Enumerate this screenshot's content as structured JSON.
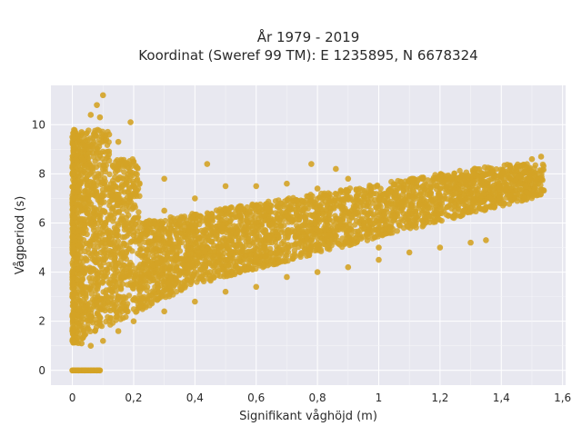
{
  "chart_data": {
    "type": "scatter",
    "title": "År 1979 - 2019",
    "subtitle": "Koordinat (Sweref 99 TM): E 1235895, N 6678324",
    "xlabel": "Signifikant våghöjd (m)",
    "ylabel": "Vågperiod (s)",
    "xlim": [
      -0.07,
      1.61
    ],
    "ylim": [
      -0.6,
      11.6
    ],
    "xticks": [
      0,
      0.2,
      0.4,
      0.6,
      0.8,
      1,
      1.2,
      1.4,
      1.6
    ],
    "xtick_labels": [
      "0",
      "0,2",
      "0,4",
      "0,6",
      "0,8",
      "1",
      "1,2",
      "1,4",
      "1,6"
    ],
    "yticks": [
      0,
      2,
      4,
      6,
      8,
      10
    ],
    "ytick_labels": [
      "0",
      "2",
      "4",
      "6",
      "8",
      "10"
    ],
    "grid": true,
    "legend": "none",
    "marker_color": "#D4A326",
    "background_color": "#E8E8F0",
    "points": [
      {
        "x": 0.0,
        "y": 0.0
      },
      {
        "x": 0.02,
        "y": 0.0
      },
      {
        "x": 0.04,
        "y": 0.0
      },
      {
        "x": 0.06,
        "y": 0.0
      },
      {
        "x": 0.08,
        "y": 0.0
      },
      {
        "x": 0.09,
        "y": 0.0
      },
      {
        "x": 0.0,
        "y": 1.2
      },
      {
        "x": 0.0,
        "y": 1.6
      },
      {
        "x": 0.0,
        "y": 2.2
      },
      {
        "x": 0.0,
        "y": 3.0
      },
      {
        "x": 0.0,
        "y": 4.0
      },
      {
        "x": 0.0,
        "y": 5.0
      },
      {
        "x": 0.0,
        "y": 6.0
      },
      {
        "x": 0.0,
        "y": 7.0
      },
      {
        "x": 0.0,
        "y": 8.0
      },
      {
        "x": 0.0,
        "y": 9.5
      },
      {
        "x": 0.03,
        "y": 1.1
      },
      {
        "x": 0.03,
        "y": 2.0
      },
      {
        "x": 0.03,
        "y": 3.5
      },
      {
        "x": 0.03,
        "y": 5.0
      },
      {
        "x": 0.03,
        "y": 6.5
      },
      {
        "x": 0.03,
        "y": 8.0
      },
      {
        "x": 0.03,
        "y": 9.7
      },
      {
        "x": 0.06,
        "y": 1.0
      },
      {
        "x": 0.06,
        "y": 2.2
      },
      {
        "x": 0.06,
        "y": 4.0
      },
      {
        "x": 0.06,
        "y": 6.0
      },
      {
        "x": 0.06,
        "y": 7.5
      },
      {
        "x": 0.06,
        "y": 9.0
      },
      {
        "x": 0.06,
        "y": 10.4
      },
      {
        "x": 0.08,
        "y": 10.8
      },
      {
        "x": 0.1,
        "y": 11.2
      },
      {
        "x": 0.09,
        "y": 10.3
      },
      {
        "x": 0.12,
        "y": 9.6
      },
      {
        "x": 0.15,
        "y": 9.3
      },
      {
        "x": 0.19,
        "y": 10.1
      },
      {
        "x": 0.1,
        "y": 1.2
      },
      {
        "x": 0.1,
        "y": 2.5
      },
      {
        "x": 0.1,
        "y": 4.5
      },
      {
        "x": 0.1,
        "y": 6.5
      },
      {
        "x": 0.1,
        "y": 8.2
      },
      {
        "x": 0.15,
        "y": 1.6
      },
      {
        "x": 0.15,
        "y": 3.0
      },
      {
        "x": 0.15,
        "y": 5.0
      },
      {
        "x": 0.15,
        "y": 7.0
      },
      {
        "x": 0.15,
        "y": 8.4
      },
      {
        "x": 0.2,
        "y": 2.0
      },
      {
        "x": 0.2,
        "y": 3.5
      },
      {
        "x": 0.2,
        "y": 5.5
      },
      {
        "x": 0.2,
        "y": 7.5
      },
      {
        "x": 0.2,
        "y": 8.5
      },
      {
        "x": 0.3,
        "y": 2.4
      },
      {
        "x": 0.3,
        "y": 3.5
      },
      {
        "x": 0.3,
        "y": 5.0
      },
      {
        "x": 0.3,
        "y": 6.5
      },
      {
        "x": 0.3,
        "y": 7.8
      },
      {
        "x": 0.4,
        "y": 2.8
      },
      {
        "x": 0.4,
        "y": 4.0
      },
      {
        "x": 0.4,
        "y": 5.5
      },
      {
        "x": 0.4,
        "y": 7.0
      },
      {
        "x": 0.44,
        "y": 8.4
      },
      {
        "x": 0.5,
        "y": 3.2
      },
      {
        "x": 0.5,
        "y": 4.5
      },
      {
        "x": 0.5,
        "y": 6.0
      },
      {
        "x": 0.5,
        "y": 7.5
      },
      {
        "x": 0.6,
        "y": 3.4
      },
      {
        "x": 0.6,
        "y": 4.5
      },
      {
        "x": 0.6,
        "y": 6.0
      },
      {
        "x": 0.6,
        "y": 7.5
      },
      {
        "x": 0.7,
        "y": 3.8
      },
      {
        "x": 0.7,
        "y": 5.0
      },
      {
        "x": 0.7,
        "y": 6.3
      },
      {
        "x": 0.7,
        "y": 7.6
      },
      {
        "x": 0.78,
        "y": 8.4
      },
      {
        "x": 0.86,
        "y": 8.2
      },
      {
        "x": 0.8,
        "y": 4.0
      },
      {
        "x": 0.8,
        "y": 5.0
      },
      {
        "x": 0.8,
        "y": 6.2
      },
      {
        "x": 0.8,
        "y": 7.4
      },
      {
        "x": 0.9,
        "y": 4.2
      },
      {
        "x": 0.9,
        "y": 5.2
      },
      {
        "x": 0.9,
        "y": 6.4
      },
      {
        "x": 0.9,
        "y": 7.8
      },
      {
        "x": 1.0,
        "y": 4.5
      },
      {
        "x": 1.0,
        "y": 5.0
      },
      {
        "x": 1.0,
        "y": 6.0
      },
      {
        "x": 1.0,
        "y": 7.0
      },
      {
        "x": 1.1,
        "y": 4.8
      },
      {
        "x": 1.1,
        "y": 6.2
      },
      {
        "x": 1.1,
        "y": 7.2
      },
      {
        "x": 1.2,
        "y": 5.0
      },
      {
        "x": 1.2,
        "y": 6.4
      },
      {
        "x": 1.2,
        "y": 7.4
      },
      {
        "x": 1.3,
        "y": 5.2
      },
      {
        "x": 1.3,
        "y": 6.6
      },
      {
        "x": 1.3,
        "y": 7.6
      },
      {
        "x": 1.35,
        "y": 5.3
      },
      {
        "x": 1.4,
        "y": 6.8
      },
      {
        "x": 1.4,
        "y": 7.8
      },
      {
        "x": 1.45,
        "y": 8.3
      },
      {
        "x": 1.5,
        "y": 8.6
      },
      {
        "x": 1.53,
        "y": 8.7
      }
    ]
  }
}
